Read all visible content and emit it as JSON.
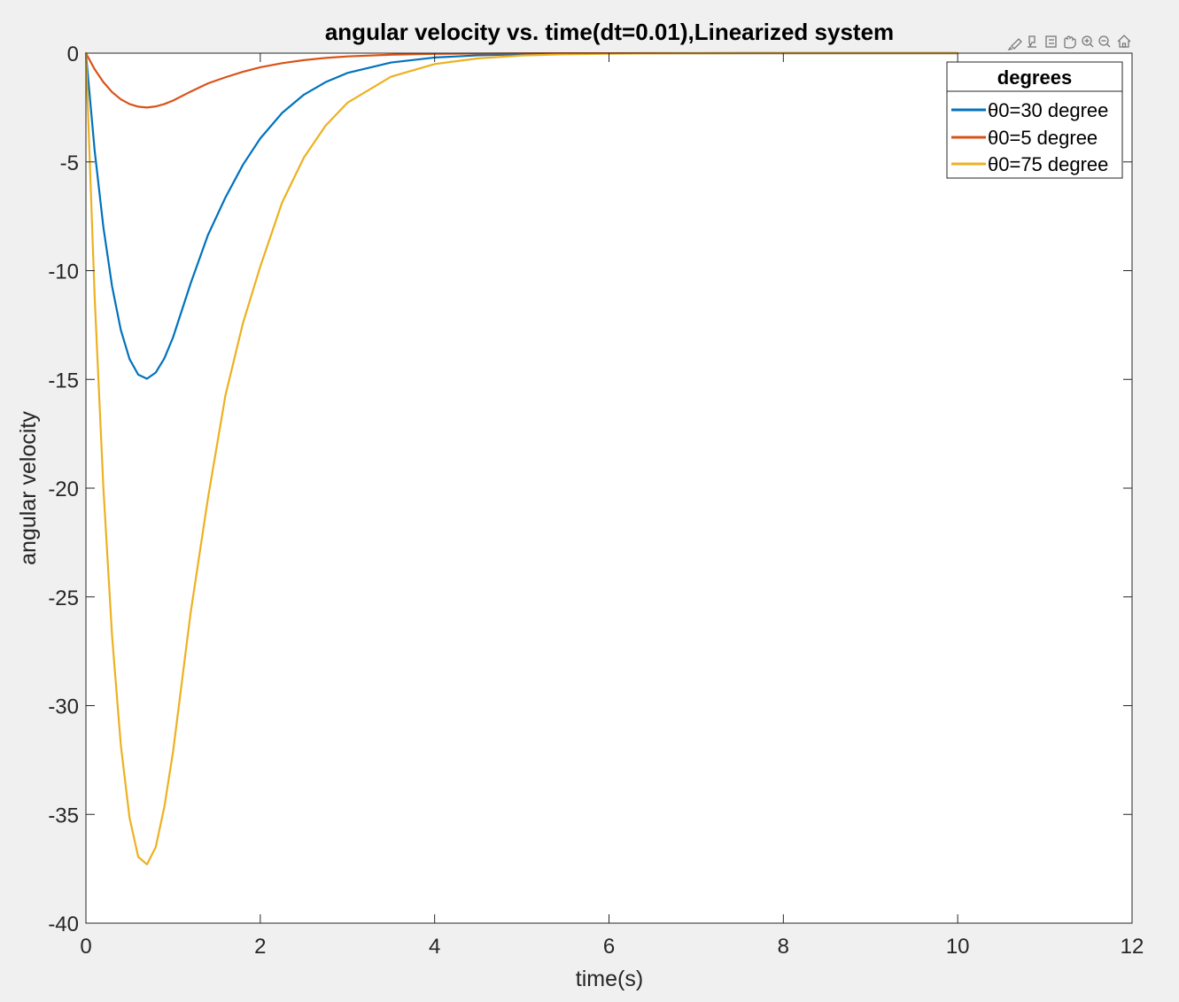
{
  "toolbar": {
    "icons": [
      "brush-icon",
      "data-tips-icon",
      "zoom-region-icon",
      "pan-icon",
      "zoom-in-icon",
      "zoom-out-icon",
      "home-icon"
    ]
  },
  "chart_data": {
    "type": "line",
    "title": "angular velocity vs. time(dt=0.01),Linearized system",
    "xlabel": "time(s)",
    "ylabel": "angular velocity",
    "xlim": [
      0,
      12
    ],
    "ylim": [
      -40,
      0
    ],
    "xticks": [
      0,
      2,
      4,
      6,
      8,
      10,
      12
    ],
    "yticks": [
      0,
      -5,
      -10,
      -15,
      -20,
      -25,
      -30,
      -35,
      -40
    ],
    "grid": false,
    "legend": {
      "title": "degrees",
      "placement": "top-right"
    },
    "x": [
      0,
      0.1,
      0.2,
      0.3,
      0.4,
      0.5,
      0.6,
      0.7,
      0.8,
      0.9,
      1.0,
      1.2,
      1.4,
      1.6,
      1.8,
      2.0,
      2.25,
      2.5,
      2.75,
      3.0,
      3.5,
      4.0,
      4.5,
      5.0,
      5.5,
      6.0,
      6.5,
      7.0,
      7.5,
      8.0,
      8.5,
      9.0,
      9.5,
      10.0
    ],
    "series": [
      {
        "name": "θ0=30 degree",
        "color": "#0072bd",
        "values": [
          0,
          -4.47,
          -7.99,
          -10.72,
          -12.72,
          -14.06,
          -14.78,
          -14.97,
          -14.69,
          -14.03,
          -13.06,
          -10.6,
          -8.36,
          -6.64,
          -5.14,
          -3.92,
          -2.75,
          -1.91,
          -1.33,
          -0.91,
          -0.43,
          -0.2,
          -0.1,
          -0.05,
          -0.02,
          -0.01,
          -0.005,
          -0.002,
          -0.001,
          0,
          0,
          0,
          0,
          0
        ]
      },
      {
        "name": "θ0=5 degree",
        "color": "#d95319",
        "values": [
          0,
          -0.74,
          -1.33,
          -1.79,
          -2.12,
          -2.34,
          -2.46,
          -2.5,
          -2.45,
          -2.34,
          -2.18,
          -1.77,
          -1.39,
          -1.11,
          -0.86,
          -0.65,
          -0.46,
          -0.32,
          -0.22,
          -0.15,
          -0.07,
          -0.03,
          -0.017,
          -0.008,
          -0.004,
          -0.002,
          -0.001,
          0,
          0,
          0,
          0,
          0,
          0,
          0
        ]
      },
      {
        "name": "θ0=75 degree",
        "color": "#edb120",
        "values": [
          0,
          -11.19,
          -19.96,
          -26.8,
          -31.8,
          -35.15,
          -36.95,
          -37.3,
          -36.51,
          -34.65,
          -32.1,
          -25.76,
          -20.46,
          -15.74,
          -12.43,
          -9.81,
          -6.87,
          -4.8,
          -3.33,
          -2.28,
          -1.08,
          -0.5,
          -0.24,
          -0.11,
          -0.05,
          -0.025,
          -0.012,
          -0.005,
          -0.002,
          0,
          0,
          0,
          0,
          0
        ]
      }
    ]
  }
}
